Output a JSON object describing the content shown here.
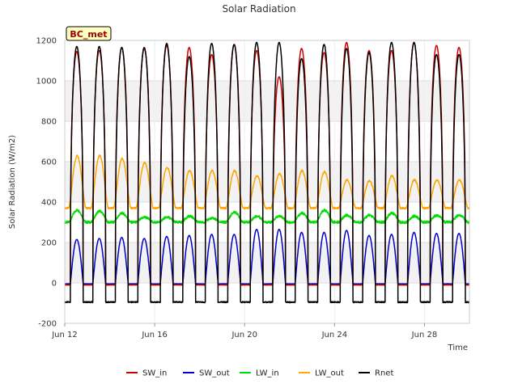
{
  "chart_data": {
    "type": "line",
    "title": "Solar Radiation",
    "xlabel": "Time",
    "ylabel": "Solar Radiation (W/m2)",
    "badge": "BC_met",
    "x_range_days": [
      12,
      30
    ],
    "x_ticks": [
      {
        "day": 12,
        "label": "Jun 12"
      },
      {
        "day": 16,
        "label": "Jun 16"
      },
      {
        "day": 20,
        "label": "Jun 20"
      },
      {
        "day": 24,
        "label": "Jun 24"
      },
      {
        "day": 28,
        "label": "Jun 28"
      }
    ],
    "ylim": [
      -200,
      1200
    ],
    "y_ticks": [
      -200,
      0,
      200,
      400,
      600,
      800,
      1000,
      1200
    ],
    "grid": true,
    "legend_position": "bottom",
    "daily_peaks": {
      "days": [
        12,
        13,
        14,
        15,
        16,
        17,
        18,
        19,
        20,
        21,
        22,
        23,
        24,
        25,
        26,
        27,
        28,
        29
      ],
      "SW_in_max": [
        1145,
        1150,
        1165,
        1160,
        1175,
        1165,
        1130,
        1180,
        1150,
        1020,
        1160,
        1140,
        1190,
        1150,
        1150,
        1190,
        1175,
        1165
      ],
      "SW_out_max": [
        215,
        220,
        225,
        220,
        230,
        235,
        240,
        240,
        265,
        265,
        250,
        250,
        260,
        235,
        240,
        250,
        245,
        245
      ],
      "LW_in_max": [
        360,
        355,
        345,
        325,
        325,
        330,
        320,
        350,
        330,
        330,
        345,
        360,
        335,
        335,
        345,
        330,
        335,
        335
      ],
      "LW_out_max": [
        630,
        630,
        615,
        595,
        570,
        555,
        555,
        555,
        530,
        540,
        555,
        550,
        510,
        505,
        530,
        510,
        510,
        510
      ],
      "Rnet_max": [
        1170,
        1170,
        1165,
        1165,
        1185,
        1120,
        1185,
        1180,
        1190,
        1190,
        1110,
        1180,
        1160,
        1140,
        1190,
        1190,
        1130,
        1130
      ]
    },
    "series": [
      {
        "name": "SW_in",
        "color": "#cc0000",
        "night_value": -10
      },
      {
        "name": "SW_out",
        "color": "#0000cc",
        "night_value": -5
      },
      {
        "name": "LW_in",
        "color": "#00dd00",
        "night_value": 300
      },
      {
        "name": "LW_out",
        "color": "#ffa500",
        "night_value": 370
      },
      {
        "name": "Rnet",
        "color": "#000000",
        "night_value": -95
      }
    ]
  }
}
